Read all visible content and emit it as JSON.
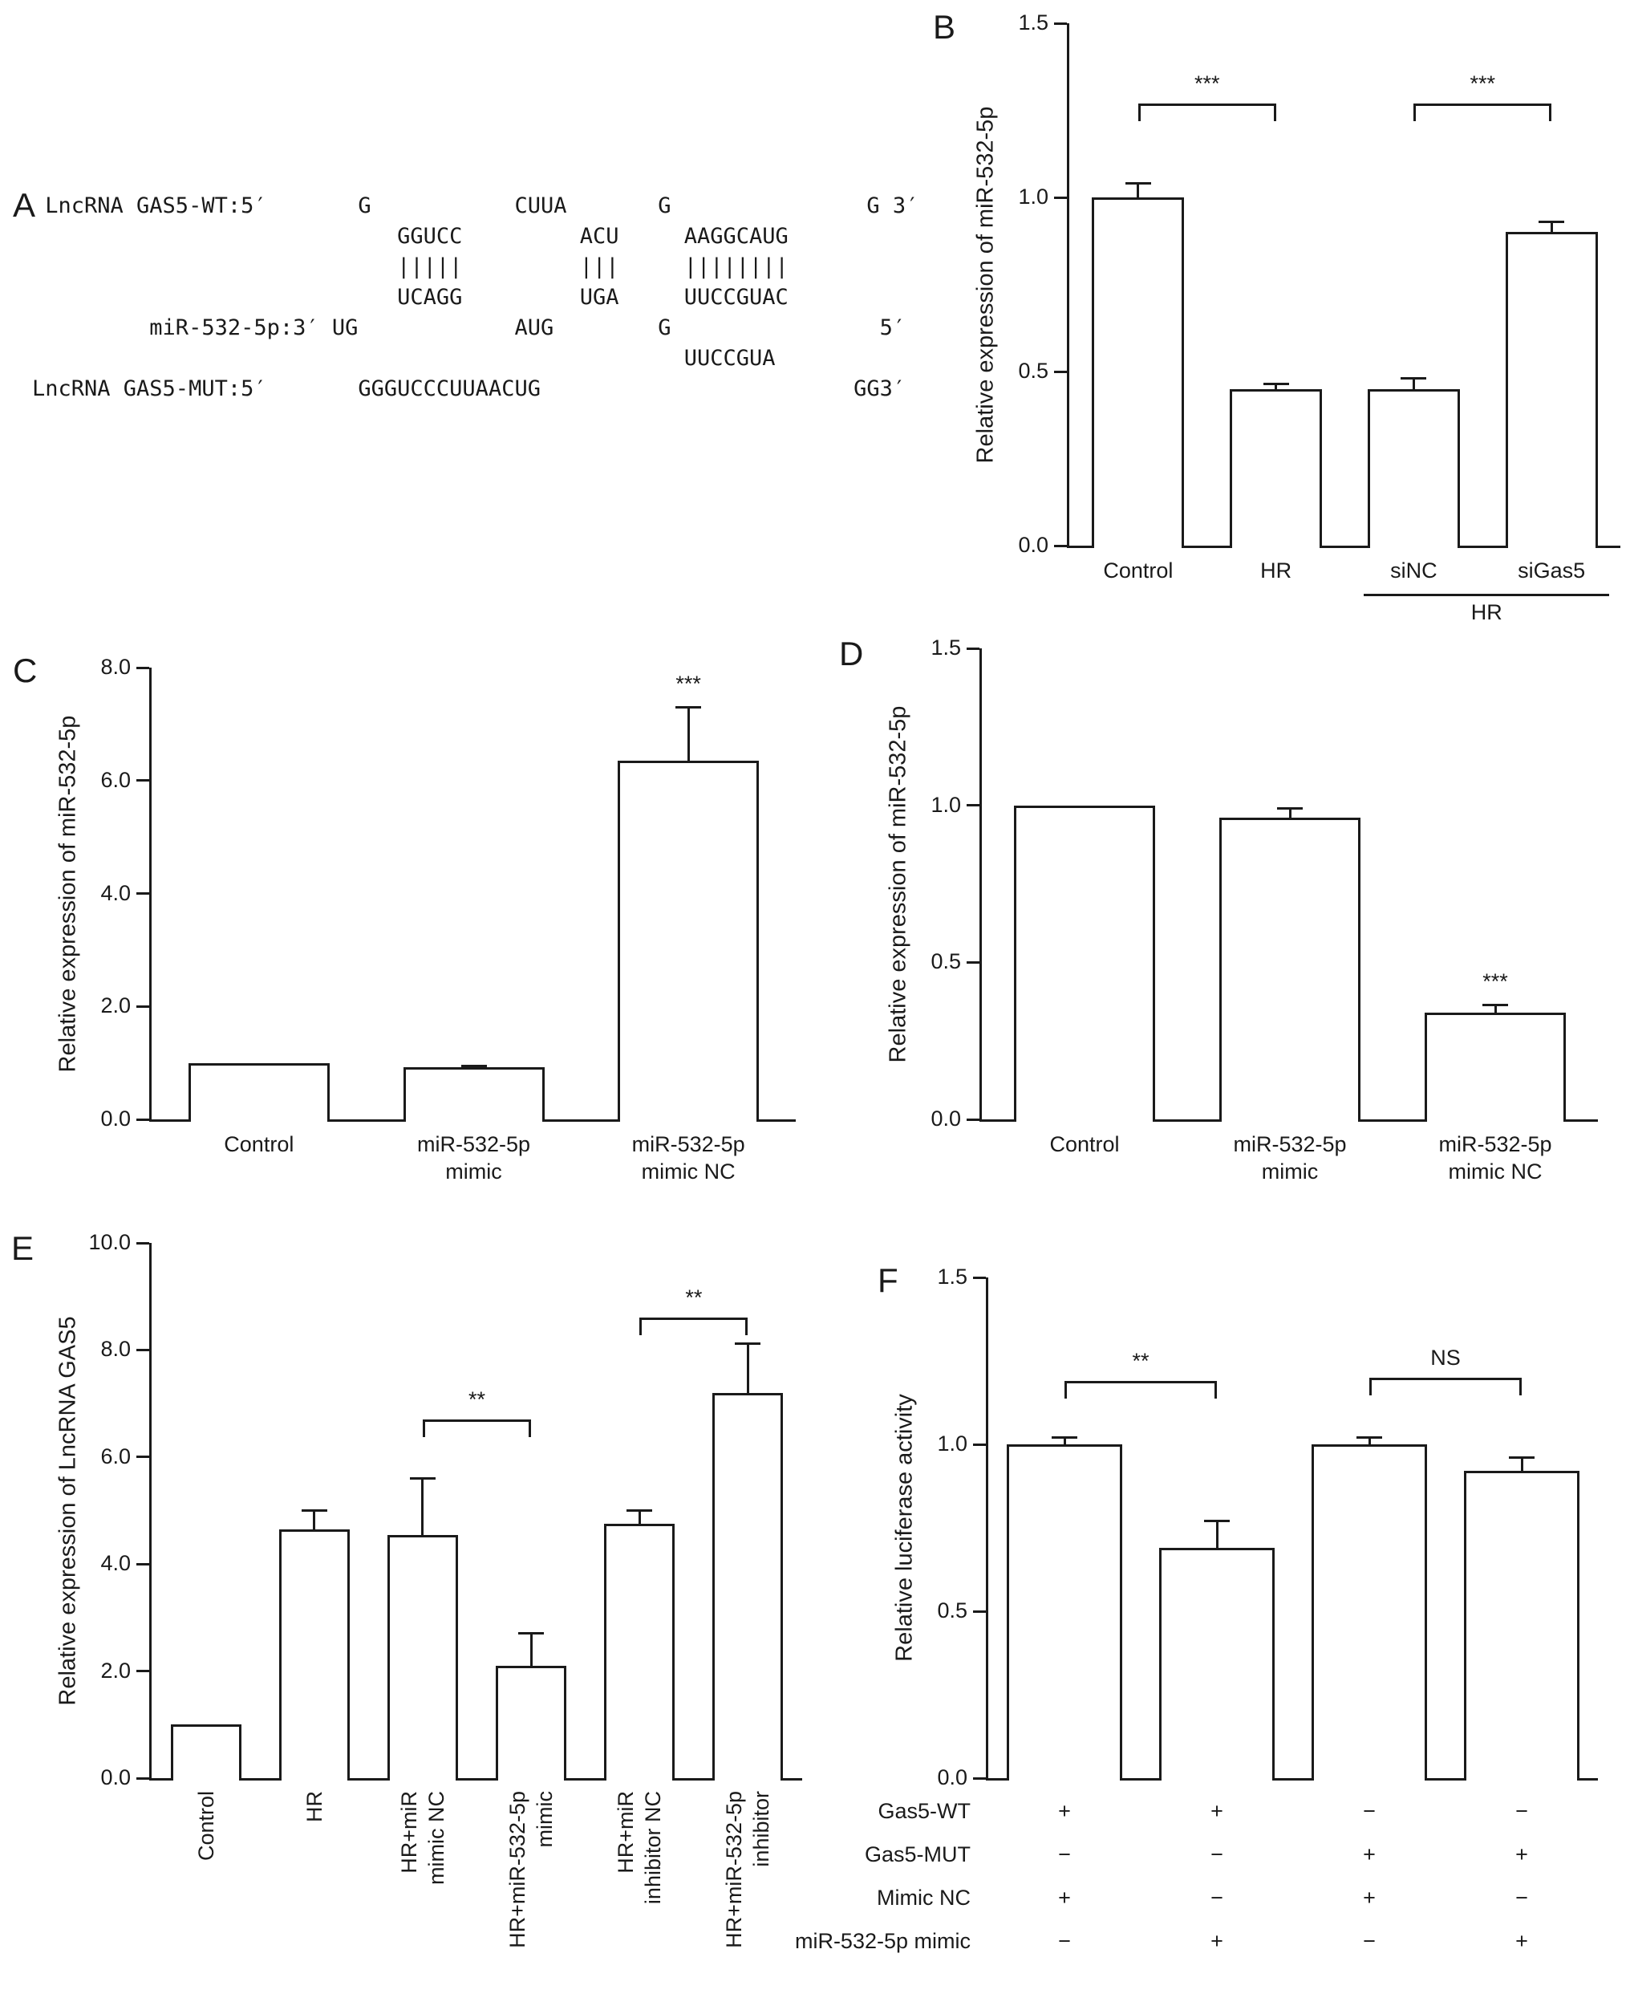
{
  "panel_a": {
    "label": "A",
    "lines": [
      " LncRNA GAS5-WT:5′       G           CUUA       G               G 3′",
      "                            GGUCC         ACU     AAGGCAUG",
      "                            |||||         |||     ||||||||",
      "                            UCAGG         UGA     UUCCGUAC",
      "         miR-532-5p:3′ UG            AUG        G                5′",
      "                                                  UUCCGUA",
      "LncRNA GAS5-MUT:5′       GGGUCCCUUAACUG                        GG3′"
    ]
  },
  "colors": {
    "ink": "#1a1a1a",
    "bar_fill": "#ffffff"
  },
  "chart_data": [
    {
      "id": "B",
      "panel_label": "B",
      "type": "bar",
      "title": "",
      "ylabel": "Relative expression of miR-532-5p",
      "ylim": [
        0,
        1.5
      ],
      "grid": "off",
      "yticks": [
        {
          "v": 0,
          "label": "0.0"
        },
        {
          "v": 0.5,
          "label": "0.5"
        },
        {
          "v": 1.0,
          "label": "1.0"
        },
        {
          "v": 1.5,
          "label": "1.5"
        }
      ],
      "categories": [
        "Control",
        "HR",
        "siNC",
        "siGas5"
      ],
      "values": [
        1.0,
        0.45,
        0.45,
        0.9
      ],
      "errors": [
        0.04,
        0.015,
        0.03,
        0.03
      ],
      "sig_brackets": [
        {
          "from": 0,
          "to": 1,
          "label": "***",
          "y": 1.27
        },
        {
          "from": 2,
          "to": 3,
          "label": "***",
          "y": 1.27
        }
      ],
      "bar_stars": [],
      "group_label": {
        "label": "HR",
        "from": 2,
        "to": 3
      }
    },
    {
      "id": "C",
      "panel_label": "C",
      "type": "bar",
      "title": "",
      "ylabel": "Relative expression of miR-532-5p",
      "ylim": [
        0,
        8
      ],
      "grid": "off",
      "yticks": [
        {
          "v": 0,
          "label": "0.0"
        },
        {
          "v": 2,
          "label": "2.0"
        },
        {
          "v": 4,
          "label": "4.0"
        },
        {
          "v": 6,
          "label": "6.0"
        },
        {
          "v": 8,
          "label": "8.0"
        }
      ],
      "categories": [
        "Control",
        "miR-532-5p\nmimic",
        "miR-532-5p\nmimic NC"
      ],
      "values": [
        1.0,
        0.93,
        6.35
      ],
      "errors": [
        0,
        0.02,
        0.95
      ],
      "sig_brackets": [],
      "bar_stars": [
        {
          "bar": 2,
          "label": "***"
        }
      ]
    },
    {
      "id": "D",
      "panel_label": "D",
      "type": "bar",
      "title": "",
      "ylabel": "Relative expression of miR-532-5p",
      "ylim": [
        0,
        1.5
      ],
      "grid": "off",
      "yticks": [
        {
          "v": 0,
          "label": "0.0"
        },
        {
          "v": 0.5,
          "label": "0.5"
        },
        {
          "v": 1.0,
          "label": "1.0"
        },
        {
          "v": 1.5,
          "label": "1.5"
        }
      ],
      "categories": [
        "Control",
        "miR-532-5p\nmimic",
        "miR-532-5p\nmimic NC"
      ],
      "values": [
        1.0,
        0.96,
        0.34
      ],
      "errors": [
        0,
        0.03,
        0.025
      ],
      "sig_brackets": [],
      "bar_stars": [
        {
          "bar": 2,
          "label": "***"
        }
      ]
    },
    {
      "id": "E",
      "panel_label": "E",
      "type": "bar",
      "title": "",
      "ylabel": "Relative expression of LncRNA GAS5",
      "ylim": [
        0,
        10
      ],
      "grid": "off",
      "yticks": [
        {
          "v": 0,
          "label": "0.0"
        },
        {
          "v": 2,
          "label": "2.0"
        },
        {
          "v": 4,
          "label": "4.0"
        },
        {
          "v": 6,
          "label": "6.0"
        },
        {
          "v": 8,
          "label": "8.0"
        },
        {
          "v": 10,
          "label": "10.0"
        }
      ],
      "categories": [
        "Control",
        "HR",
        "HR+miR\nmimic NC",
        "HR+miR-532-5p\nmimic",
        "HR+miR\ninhibitor NC",
        "HR+miR-532-5p\ninhibitor"
      ],
      "values": [
        1.0,
        4.65,
        4.55,
        2.1,
        4.75,
        7.2
      ],
      "errors": [
        0,
        0.35,
        1.05,
        0.6,
        0.25,
        0.92
      ],
      "sig_brackets": [
        {
          "from": 2,
          "to": 3,
          "label": "**",
          "y": 6.7
        },
        {
          "from": 4,
          "to": 5,
          "label": "**",
          "y": 8.6
        }
      ],
      "bar_stars": []
    },
    {
      "id": "F",
      "panel_label": "F",
      "type": "bar",
      "title": "",
      "ylabel": "Relative luciferase activity",
      "ylim": [
        0,
        1.5
      ],
      "grid": "off",
      "yticks": [
        {
          "v": 0,
          "label": "0.0"
        },
        {
          "v": 0.5,
          "label": "0.5"
        },
        {
          "v": 1.0,
          "label": "1.0"
        },
        {
          "v": 1.5,
          "label": "1.5"
        }
      ],
      "categories": [
        "",
        "",
        "",
        ""
      ],
      "values": [
        1.0,
        0.69,
        1.0,
        0.92
      ],
      "errors": [
        0.02,
        0.08,
        0.02,
        0.04
      ],
      "sig_brackets": [
        {
          "from": 0,
          "to": 1,
          "label": "**",
          "y": 1.19
        },
        {
          "from": 2,
          "to": 3,
          "label": "NS",
          "y": 1.2
        }
      ],
      "bar_stars": [],
      "sign_table": [
        {
          "label": "Gas5-WT",
          "signs": [
            "+",
            "+",
            "−",
            "−"
          ]
        },
        {
          "label": "Gas5-MUT",
          "signs": [
            "−",
            "−",
            "+",
            "+"
          ]
        },
        {
          "label": "Mimic NC",
          "signs": [
            "+",
            "−",
            "+",
            "−"
          ]
        },
        {
          "label": "miR-532-5p mimic",
          "signs": [
            "−",
            "+",
            "−",
            "+"
          ]
        }
      ]
    }
  ]
}
